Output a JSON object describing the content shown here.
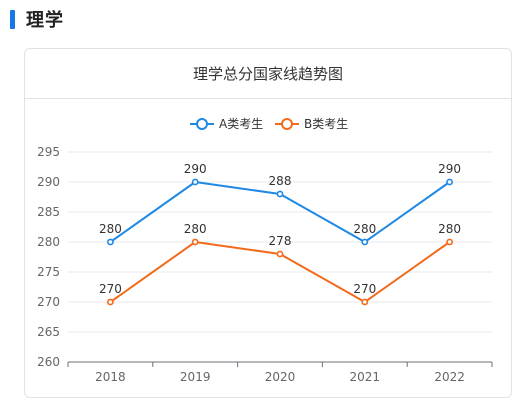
{
  "section": {
    "title": "理学"
  },
  "chart_data": {
    "type": "line",
    "title": "理学总分国家线趋势图",
    "categories": [
      "2018",
      "2019",
      "2020",
      "2021",
      "2022"
    ],
    "series": [
      {
        "name": "A类考生",
        "values": [
          280,
          290,
          288,
          280,
          290
        ],
        "color": "#1e88e5"
      },
      {
        "name": "B类考生",
        "values": [
          270,
          280,
          278,
          270,
          280
        ],
        "color": "#f26a1b"
      }
    ],
    "yticks": [
      "295",
      "290",
      "285",
      "280",
      "275",
      "270",
      "265",
      "260"
    ],
    "ylim": [
      260,
      295
    ],
    "grid": true,
    "legend": "top-center",
    "xlabel": "",
    "ylabel": ""
  }
}
